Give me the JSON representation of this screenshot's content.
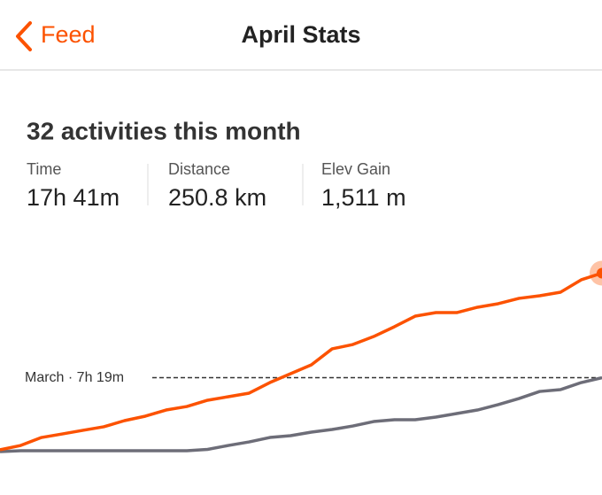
{
  "header": {
    "back": "Feed",
    "title": "April Stats"
  },
  "summary": "32 activities this month",
  "stats": [
    {
      "label": "Time",
      "value": "17h 41m"
    },
    {
      "label": "Distance",
      "value": "250.8 km"
    },
    {
      "label": "Elev Gain",
      "value": "1,511 m"
    }
  ],
  "chart_data": {
    "type": "line",
    "ylim": [
      0,
      20
    ],
    "series": [
      {
        "color": "#fc5200",
        "values": [
          0.18,
          0.61,
          1.4,
          1.75,
          2.11,
          2.46,
          3.07,
          3.51,
          4.12,
          4.47,
          5.09,
          5.44,
          5.79,
          6.84,
          7.72,
          8.6,
          10.18,
          10.61,
          11.4,
          12.37,
          13.42,
          13.77,
          13.77,
          14.3,
          14.65,
          15.18,
          15.44,
          15.79,
          17.02,
          17.68
        ]
      },
      {
        "color": "#6d6d78",
        "values": [
          0,
          0.09,
          0.09,
          0.09,
          0.09,
          0.09,
          0.09,
          0.09,
          0.09,
          0.09,
          0.22,
          0.61,
          0.96,
          1.4,
          1.58,
          1.93,
          2.19,
          2.54,
          2.98,
          3.16,
          3.16,
          3.42,
          3.77,
          4.12,
          4.65,
          5.26,
          5.96,
          6.14,
          6.84,
          7.32
        ]
      }
    ],
    "reference": {
      "label": "March · 7h 19m",
      "value": 7.32
    }
  }
}
